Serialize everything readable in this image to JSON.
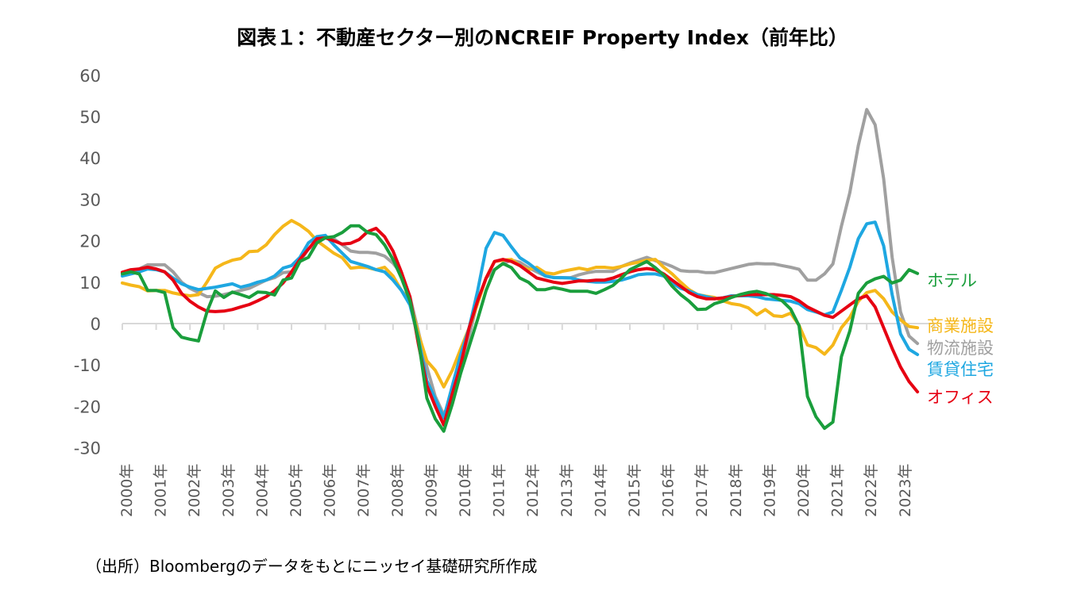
{
  "title": "図表１：不動産セクター別のNCREIF Property Index（前年比）",
  "source": "（出所）Bloombergのデータをもとにニッセイ基礎研究所作成",
  "chart_data": {
    "type": "line",
    "title": "図表１：不動産セクター別のNCREIF Property Index（前年比）",
    "xlabel": "",
    "ylabel": "",
    "frequency": "quarterly",
    "x_start": "2000Q1",
    "x_end": "2023Q3",
    "x_tick_labels": [
      "2000年",
      "2001年",
      "2002年",
      "2003年",
      "2004年",
      "2005年",
      "2006年",
      "2007年",
      "2008年",
      "2009年",
      "2010年",
      "2011年",
      "2012年",
      "2013年",
      "2014年",
      "2015年",
      "2016年",
      "2017年",
      "2018年",
      "2019年",
      "2020年",
      "2021年",
      "2022年",
      "2023年"
    ],
    "y_ticks": [
      60,
      50,
      40,
      30,
      20,
      10,
      0,
      -10,
      -20,
      -30
    ],
    "ylim": [
      -30,
      60
    ],
    "grid": false,
    "legend": "right (labels at line ends)",
    "series": [
      {
        "name": "ホテル",
        "color": "#1a9e3c",
        "values": [
          12,
          12.5,
          12,
          8,
          8,
          7.5,
          -1,
          -3.3,
          -3.8,
          -4.2,
          2.8,
          7.9,
          6.3,
          7.6,
          7,
          6.3,
          7.6,
          7.5,
          6.9,
          10.5,
          11,
          15,
          16,
          19.5,
          20.7,
          21,
          22,
          23.6,
          23.6,
          22,
          21.5,
          19,
          15.5,
          11,
          5.5,
          -4,
          -18,
          -23,
          -26,
          -19.5,
          -12,
          -5.5,
          1,
          8,
          13,
          14.5,
          13.5,
          11,
          10,
          8.2,
          8.2,
          8.7,
          8.3,
          7.8,
          7.8,
          7.8,
          7.3,
          8.2,
          9.2,
          11,
          13,
          14,
          15,
          13.5,
          11.7,
          9,
          7,
          5.4,
          3.4,
          3.5,
          4.8,
          5.4,
          6.3,
          7,
          7.5,
          7.8,
          7.3,
          6.5,
          5.5,
          3.5,
          -0.5,
          -17.6,
          -22.5,
          -25.3,
          -23.8,
          -8,
          -1.8,
          7.3,
          9.8,
          10.8,
          11.4,
          9.8,
          10.5,
          13,
          12.1
        ]
      },
      {
        "name": "商業施設",
        "color": "#f5b71a",
        "values": [
          9.8,
          9.3,
          8.9,
          7.9,
          8,
          8,
          7.4,
          7,
          6.7,
          7,
          10,
          13.4,
          14.5,
          15.3,
          15.7,
          17.4,
          17.5,
          19,
          21.5,
          23.5,
          24.9,
          23.8,
          22.3,
          20,
          18.5,
          17,
          15.9,
          13.4,
          13.6,
          13.5,
          13,
          13.6,
          11.5,
          8,
          5.4,
          -2.5,
          -9,
          -11.3,
          -15.3,
          -11.3,
          -6.1,
          -1,
          4.8,
          11,
          15,
          15.3,
          15.5,
          14,
          13,
          13.6,
          12.3,
          12,
          12.6,
          13,
          13.4,
          13,
          13.6,
          13.6,
          13.4,
          13.8,
          14.4,
          14.8,
          15.3,
          15.5,
          13.6,
          12,
          10,
          8.2,
          7,
          6.6,
          6.3,
          5.5,
          4.8,
          4.5,
          3.8,
          2.1,
          3.4,
          1.9,
          1.7,
          2.5,
          -0.4,
          -5.2,
          -5.8,
          -7.4,
          -5.2,
          -1,
          1.5,
          5.4,
          7.5,
          8,
          6,
          2.8,
          0.9,
          -0.7,
          -1
        ]
      },
      {
        "name": "物流施設",
        "color": "#a0a0a0",
        "values": [
          12.1,
          12.6,
          13.2,
          14.2,
          14.2,
          14.2,
          12.5,
          10,
          8.5,
          7.5,
          6.5,
          6.6,
          7,
          7.5,
          8,
          8.5,
          9.5,
          10.5,
          11.1,
          12.3,
          12.5,
          15,
          18,
          19.5,
          21,
          20.5,
          19,
          17.5,
          17.2,
          17.2,
          17,
          16.3,
          14.6,
          12,
          6.5,
          -2,
          -10.5,
          -17.6,
          -22,
          -17.6,
          -10,
          -3,
          5.4,
          11,
          13,
          14.5,
          15.3,
          14.8,
          13.5,
          12.5,
          11.5,
          11.1,
          11.1,
          11.1,
          11.8,
          12.3,
          12.6,
          12.6,
          12.6,
          13.8,
          14.6,
          15.3,
          16,
          15.2,
          14.6,
          13.8,
          12.8,
          12.6,
          12.6,
          12.3,
          12.3,
          12.8,
          13.3,
          13.8,
          14.3,
          14.5,
          14.4,
          14.4,
          14,
          13.6,
          13.1,
          10.5,
          10.5,
          12,
          14.4,
          23.5,
          31.6,
          43,
          51.7,
          48,
          35,
          16,
          2.8,
          -3,
          -4.8
        ]
      },
      {
        "name": "賃貸住宅",
        "color": "#1ea7e1",
        "values": [
          11.5,
          12,
          12.5,
          13.2,
          13,
          12.5,
          11,
          9.6,
          8.8,
          8.2,
          8.5,
          8.8,
          9.2,
          9.6,
          8.8,
          9.3,
          10,
          10.5,
          11.5,
          13.4,
          14,
          16,
          19.5,
          21,
          21.3,
          19,
          17,
          15,
          14.4,
          13.8,
          13,
          12.5,
          10.5,
          8,
          4.5,
          -3.6,
          -13.8,
          -18.2,
          -22.8,
          -15.1,
          -7.5,
          -1,
          7.9,
          18.2,
          22,
          21.3,
          18.5,
          15.9,
          14.6,
          13,
          11.5,
          11.1,
          11.1,
          11,
          10.5,
          10.2,
          10,
          10,
          10.2,
          10.5,
          11.1,
          11.8,
          12,
          12,
          11.5,
          9.8,
          8.5,
          7.9,
          7,
          6.5,
          6,
          6.2,
          6.7,
          6.7,
          6.7,
          6.5,
          6,
          5.8,
          5.6,
          5.4,
          4.8,
          3.4,
          2.8,
          2.1,
          2.8,
          8,
          13.6,
          20.5,
          24.1,
          24.5,
          18.8,
          7,
          -2.5,
          -6.2,
          -7.5
        ]
      },
      {
        "name": "オフィス",
        "color": "#e60012",
        "values": [
          12.4,
          13,
          13.2,
          13.6,
          13.2,
          12.5,
          10.5,
          7.3,
          5.4,
          4,
          3,
          2.9,
          3,
          3.4,
          4,
          4.6,
          5.5,
          6.5,
          7.9,
          9.8,
          12.5,
          15.5,
          18,
          20.5,
          20.7,
          20,
          19.2,
          19.4,
          20.3,
          22.2,
          23,
          21,
          17.5,
          12.4,
          6.5,
          -5,
          -15,
          -20,
          -24.5,
          -17,
          -10,
          -1,
          5.5,
          11,
          15,
          15.5,
          15,
          14,
          12.5,
          11,
          10.5,
          10,
          9.7,
          10,
          10.3,
          10.3,
          10.5,
          10.5,
          11,
          11.8,
          12.5,
          13,
          13.3,
          13,
          12,
          10.5,
          9,
          7.5,
          6.5,
          6,
          6,
          6.2,
          6.5,
          6.8,
          7,
          7,
          7,
          7,
          6.8,
          6.5,
          5.5,
          4,
          3,
          2,
          1.5,
          3,
          4.5,
          6,
          6.7,
          4,
          -1,
          -6,
          -10.5,
          -14,
          -16.5
        ]
      }
    ]
  }
}
